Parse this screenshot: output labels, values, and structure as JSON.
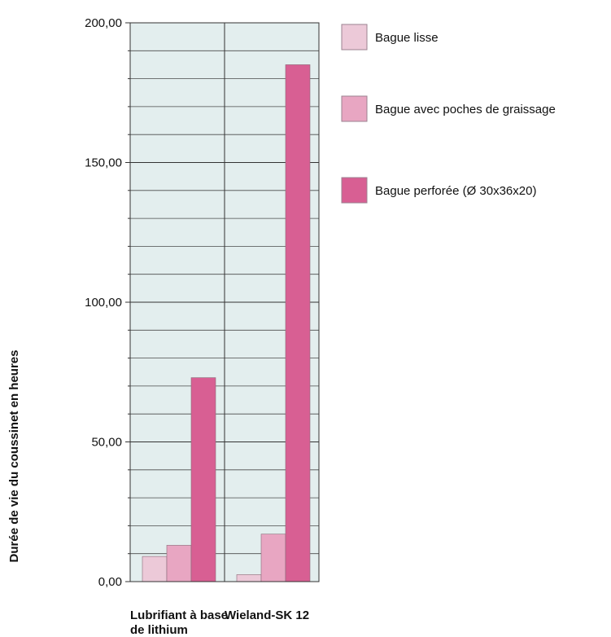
{
  "chart_data": {
    "type": "bar",
    "ylabel": "Durée de vie du coussinet en heures",
    "xlabel": "",
    "categories": [
      "Lubrifiant à base de lithium",
      "Wieland-SK 12"
    ],
    "category_lines": [
      [
        "Lubrifiant à base",
        "de lithium"
      ],
      [
        "Wieland-SK 12"
      ]
    ],
    "y_ticks": [
      "0,00",
      "50,00",
      "100,00",
      "150,00",
      "200,00"
    ],
    "ylim": [
      0,
      200
    ],
    "grid": true,
    "legend_position": "right",
    "series": [
      {
        "name": "Bague lisse",
        "color": "#ecc9d8",
        "values": [
          9,
          2.5
        ]
      },
      {
        "name": "Bague avec poches de graissage",
        "color": "#e8a6c2",
        "values": [
          13,
          17
        ]
      },
      {
        "name": "Bague perforée (Ø 30x36x20)",
        "color": "#d85f93",
        "values": [
          73,
          185
        ]
      }
    ],
    "plot_background": "#e3eeee"
  }
}
